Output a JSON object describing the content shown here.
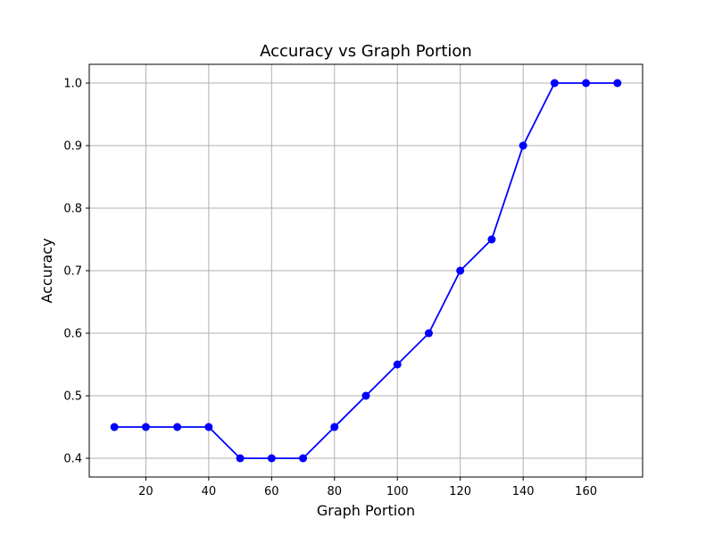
{
  "chart_data": {
    "type": "line",
    "title": "Accuracy vs Graph Portion",
    "xlabel": "Graph Portion",
    "ylabel": "Accuracy",
    "x": [
      10,
      20,
      30,
      40,
      50,
      60,
      70,
      80,
      90,
      100,
      110,
      120,
      130,
      140,
      150,
      160,
      170
    ],
    "series": [
      {
        "values": [
          0.45,
          0.45,
          0.45,
          0.45,
          0.4,
          0.4,
          0.4,
          0.45,
          0.5,
          0.55,
          0.6,
          0.7,
          0.75,
          0.9,
          1.0,
          1.0,
          1.0
        ],
        "color": "#0000ff",
        "marker": "circle"
      }
    ],
    "xlim": [
      2,
      178
    ],
    "ylim": [
      0.37,
      1.03
    ],
    "xticks": [
      "20",
      "40",
      "60",
      "80",
      "100",
      "120",
      "140",
      "160"
    ],
    "yticks": [
      "0.4",
      "0.5",
      "0.6",
      "0.7",
      "0.8",
      "0.9",
      "1.0"
    ],
    "grid": true
  }
}
